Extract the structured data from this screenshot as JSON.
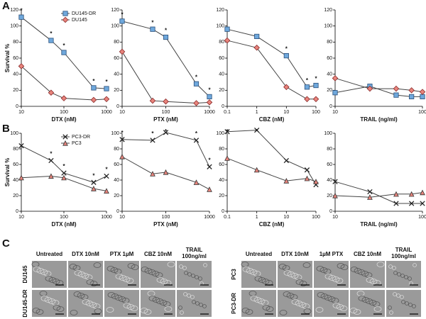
{
  "panel_labels": [
    "A",
    "B",
    "C"
  ],
  "chart_data": [
    {
      "type": "line",
      "xlabel": "DTX (nM)",
      "ylabel": "Survival %",
      "xscale": "log",
      "x": [
        10,
        50,
        100,
        500,
        1000
      ],
      "xlim": [
        10,
        1000
      ],
      "xticks": [
        10,
        100,
        1000
      ],
      "ylim": [
        0,
        120
      ],
      "yticks": [
        0,
        20,
        40,
        60,
        80,
        100,
        120
      ],
      "legend": "upper right",
      "series": [
        {
          "name": "DU145-DR",
          "color": "#6fa8dc",
          "marker": "square",
          "values": [
            111,
            82,
            67,
            23,
            22
          ]
        },
        {
          "name": "DU145",
          "color": "#e8847c",
          "marker": "diamond",
          "values": [
            50,
            17,
            10,
            8,
            9
          ]
        }
      ],
      "significance": [
        "*",
        "*",
        "*",
        "*",
        "*"
      ]
    },
    {
      "type": "line",
      "xlabel": "PTX (nM)",
      "xscale": "log",
      "x": [
        10,
        50,
        100,
        500,
        1000
      ],
      "xlim": [
        10,
        1000
      ],
      "xticks": [
        10,
        100,
        1000
      ],
      "ylim": [
        0,
        120
      ],
      "yticks": [
        0,
        20,
        40,
        60,
        80,
        100,
        120
      ],
      "series": [
        {
          "name": "DU145-DR",
          "color": "#6fa8dc",
          "marker": "square",
          "values": [
            106,
            96,
            86,
            28,
            12
          ]
        },
        {
          "name": "DU145",
          "color": "#e8847c",
          "marker": "diamond",
          "values": [
            68,
            7,
            6,
            4,
            5
          ]
        }
      ],
      "significance": [
        "*",
        "*",
        "*",
        "*",
        "*"
      ]
    },
    {
      "type": "line",
      "xlabel": "CBZ (nM)",
      "xscale": "log",
      "x": [
        0.1,
        1,
        10,
        50,
        100
      ],
      "xlim": [
        0.1,
        100
      ],
      "xticks": [
        0.1,
        1,
        10,
        100
      ],
      "ylim": [
        0,
        120
      ],
      "yticks": [
        0,
        20,
        40,
        60,
        80,
        100,
        120
      ],
      "series": [
        {
          "name": "DU145-DR",
          "color": "#6fa8dc",
          "marker": "square",
          "values": [
            96,
            87,
            63,
            24,
            26
          ]
        },
        {
          "name": "DU145",
          "color": "#e8847c",
          "marker": "diamond",
          "values": [
            82,
            73,
            24,
            9,
            9
          ]
        }
      ],
      "significance": [
        null,
        null,
        "*",
        "*",
        "*"
      ]
    },
    {
      "type": "line",
      "xlabel": "TRAIL (ng/ml)",
      "xscale": "log",
      "x": [
        10,
        25,
        50,
        75,
        100
      ],
      "xlim": [
        10,
        100
      ],
      "xticks": [
        10,
        100
      ],
      "ylim": [
        0,
        120
      ],
      "yticks": [
        0,
        20,
        40,
        60,
        80,
        100,
        120
      ],
      "series": [
        {
          "name": "DU145-DR",
          "color": "#6fa8dc",
          "marker": "square",
          "values": [
            17,
            25,
            14,
            12,
            12
          ]
        },
        {
          "name": "DU145",
          "color": "#e8847c",
          "marker": "diamond",
          "values": [
            35,
            22,
            22,
            20,
            18
          ]
        }
      ]
    },
    {
      "type": "line",
      "xlabel": "DTX (nM)",
      "ylabel": "Survival %",
      "xscale": "log",
      "x": [
        10,
        50,
        100,
        500,
        1000
      ],
      "xlim": [
        10,
        1000
      ],
      "xticks": [
        10,
        100,
        1000
      ],
      "ylim": [
        0,
        100
      ],
      "yticks": [
        0,
        20,
        40,
        60,
        80,
        100
      ],
      "legend": "upper right",
      "series": [
        {
          "name": "PC3-DR",
          "color": "#222222",
          "marker": "x",
          "values": [
            84,
            65,
            49,
            37,
            45
          ]
        },
        {
          "name": "PC3",
          "color": "#e8847c",
          "marker": "triangle",
          "values": [
            43,
            45,
            43,
            29,
            26
          ]
        }
      ],
      "significance": [
        null,
        "*",
        "*",
        "*",
        "*"
      ]
    },
    {
      "type": "line",
      "xlabel": "PTX (nM)",
      "xscale": "log",
      "x": [
        10,
        50,
        100,
        500,
        1000
      ],
      "xlim": [
        10,
        1000
      ],
      "xticks": [
        10,
        100,
        1000
      ],
      "ylim": [
        0,
        100
      ],
      "yticks": [
        0,
        20,
        40,
        60,
        80,
        100
      ],
      "series": [
        {
          "name": "PC3-DR",
          "color": "#222222",
          "marker": "x",
          "values": [
            92,
            91,
            101,
            91,
            57
          ]
        },
        {
          "name": "PC3",
          "color": "#e8847c",
          "marker": "triangle",
          "values": [
            70,
            48,
            50,
            37,
            28
          ]
        }
      ],
      "significance": [
        "*",
        "*",
        "*",
        "*",
        "*"
      ]
    },
    {
      "type": "line",
      "xlabel": "CBZ (nM)",
      "xscale": "log",
      "x": [
        0.1,
        1,
        10,
        50,
        100
      ],
      "xlim": [
        0.1,
        100
      ],
      "xticks": [
        0.1,
        1,
        10,
        100
      ],
      "ylim": [
        0,
        100
      ],
      "yticks": [
        0,
        20,
        40,
        60,
        80,
        100
      ],
      "series": [
        {
          "name": "PC3-DR",
          "color": "#222222",
          "marker": "x",
          "values": [
            102,
            104,
            65,
            53,
            34
          ]
        },
        {
          "name": "PC3",
          "color": "#e8847c",
          "marker": "triangle",
          "values": [
            68,
            53,
            39,
            42,
            38
          ]
        }
      ],
      "significance": [
        "*",
        "*",
        null,
        null,
        null
      ]
    },
    {
      "type": "line",
      "xlabel": "TRAIL (ng/ml)",
      "xscale": "log",
      "x": [
        10,
        25,
        50,
        75,
        100
      ],
      "xlim": [
        10,
        100
      ],
      "xticks": [
        10,
        100
      ],
      "ylim": [
        0,
        100
      ],
      "yticks": [
        0,
        20,
        40,
        60,
        80,
        100
      ],
      "series": [
        {
          "name": "PC3-DR",
          "color": "#222222",
          "marker": "x",
          "values": [
            38,
            25,
            10,
            10,
            10
          ]
        },
        {
          "name": "PC3",
          "color": "#e8847c",
          "marker": "triangle",
          "values": [
            20,
            18,
            22,
            22,
            24
          ]
        }
      ]
    }
  ],
  "micrographs": [
    {
      "columns": [
        "Untreated",
        "DTX 10nM",
        "PTX 1µM",
        "CBZ 10nM",
        "TRAIL 100ng/ml"
      ],
      "rows": [
        "DU145",
        "DU145-DR"
      ]
    },
    {
      "columns": [
        "Untreated",
        "DTX 10nM",
        "1µM PTX",
        "CBZ 10nM",
        "TRAIL 100ng/ml"
      ],
      "rows": [
        "PC3",
        "PC3-DR"
      ]
    }
  ]
}
